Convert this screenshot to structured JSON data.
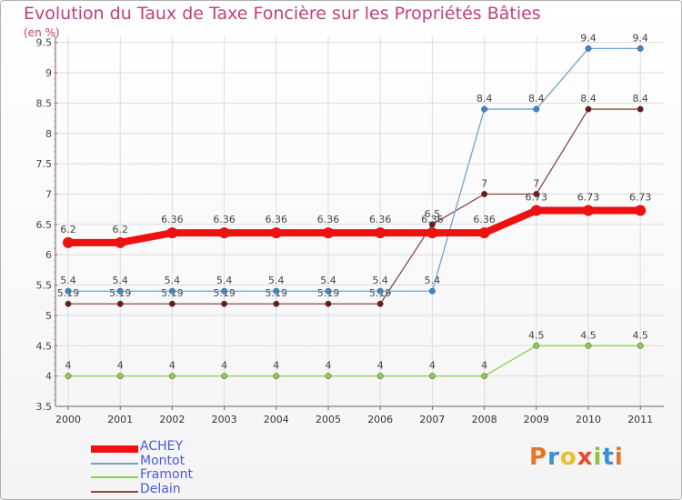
{
  "title": "Evolution du Taux de Taxe Foncière sur les Propriétés Bâties",
  "unit_label": "(en %)",
  "logo": {
    "text": "Proxiti",
    "letter_colors": [
      "#e8732a",
      "#3a8fd8",
      "#e8c02a",
      "#e84a2a",
      "#8ac43a",
      "#3a8fd8",
      "#e8732a"
    ]
  },
  "chart_data": {
    "type": "line",
    "categories": [
      "2000",
      "2001",
      "2002",
      "2003",
      "2004",
      "2005",
      "2006",
      "2007",
      "2008",
      "2009",
      "2010",
      "2011"
    ],
    "y_ticks": [
      "3.5",
      "4",
      "4.5",
      "5",
      "5.5",
      "6",
      "6.5",
      "7",
      "7.5",
      "8",
      "8.5",
      "9",
      "9.5"
    ],
    "ylim": [
      3.5,
      9.6
    ],
    "series": [
      {
        "name": "Framont",
        "color": "#8ccf4a",
        "point_color": "#8ccf4a",
        "emphasis": false,
        "values": [
          4,
          4,
          4,
          4,
          4,
          4,
          4,
          4,
          4,
          4.5,
          4.5,
          4.5
        ],
        "labels": [
          "4",
          "4",
          "4",
          "4",
          "4",
          "4",
          "4",
          "4",
          "4",
          "4.5",
          "4.5",
          "4.5"
        ]
      },
      {
        "name": "Delain",
        "color": "#8b4a4a",
        "point_color": "#6a1a1a",
        "emphasis": false,
        "values": [
          5.19,
          5.19,
          5.19,
          5.19,
          5.19,
          5.19,
          5.19,
          6.5,
          7,
          7,
          8.4,
          8.4
        ],
        "labels": [
          "5.19",
          "5.19",
          "5.19",
          "5.19",
          "5.19",
          "5.19",
          "5.19",
          "6.5",
          "7",
          "7",
          "8.4",
          "8.4"
        ]
      },
      {
        "name": "Montot",
        "color": "#6fa2d6",
        "point_color": "#3a86d0",
        "emphasis": false,
        "values": [
          5.4,
          5.4,
          5.4,
          5.4,
          5.4,
          5.4,
          5.4,
          5.4,
          8.4,
          8.4,
          9.4,
          9.4
        ],
        "labels": [
          "5.4",
          "5.4",
          "5.4",
          "5.4",
          "5.4",
          "5.4",
          "5.4",
          "5.4",
          "8.4",
          "8.4",
          "9.4",
          "9.4"
        ]
      },
      {
        "name": "ACHEY",
        "color": "#ee1111",
        "point_color": "#ee1111",
        "emphasis": true,
        "values": [
          6.2,
          6.2,
          6.36,
          6.36,
          6.36,
          6.36,
          6.36,
          6.36,
          6.36,
          6.73,
          6.73,
          6.73
        ],
        "labels": [
          "6.2",
          "6.2",
          "6.36",
          "6.36",
          "6.36",
          "6.36",
          "6.36",
          "6.36",
          "6.36",
          "6.73",
          "6.73",
          "6.73"
        ]
      }
    ],
    "legend": [
      {
        "name": "ACHEY",
        "color": "#ee1111",
        "emphasis": true
      },
      {
        "name": "Montot",
        "color": "#6fa2d6",
        "emphasis": false
      },
      {
        "name": "Framont",
        "color": "#8ccf4a",
        "emphasis": false
      },
      {
        "name": "Delain",
        "color": "#8b4a4a",
        "emphasis": false
      }
    ]
  }
}
